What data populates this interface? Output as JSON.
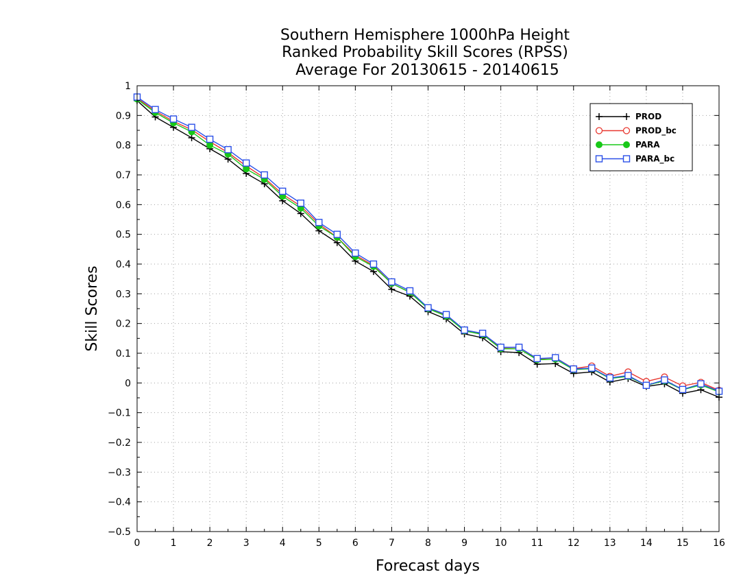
{
  "chart_data": {
    "type": "line",
    "title_lines": [
      "Southern Hemisphere 1000hPa Height",
      "Ranked Probability Skill Scores (RPSS)",
      " Average For 20130615 - 20140615"
    ],
    "xlabel": "Forecast days",
    "ylabel": "Skill Scores",
    "xlim": [
      0,
      16
    ],
    "ylim": [
      -0.5,
      1
    ],
    "xticks": [
      0,
      1,
      2,
      3,
      4,
      5,
      6,
      7,
      8,
      9,
      10,
      11,
      12,
      13,
      14,
      15,
      16
    ],
    "xtick_labels": [
      "0",
      "1",
      "2",
      "3",
      "4",
      "5",
      "6",
      "7",
      "8",
      "9",
      "10",
      "11",
      "12",
      "13",
      "14",
      "15",
      "16"
    ],
    "yticks": [
      -0.5,
      -0.4,
      -0.3,
      -0.2,
      -0.1,
      0,
      0.1,
      0.2,
      0.3,
      0.4,
      0.5,
      0.6,
      0.7,
      0.8,
      0.9,
      1
    ],
    "ytick_labels": [
      "−0.5",
      "−0.4",
      "−0.3",
      "−0.2",
      "−0.1",
      "0",
      "0.1",
      "0.2",
      "0.3",
      "0.4",
      "0.5",
      "0.6",
      "0.7",
      "0.8",
      "0.9",
      "1"
    ],
    "grid": true,
    "legend_position": "top-right",
    "x": [
      0,
      0.5,
      1,
      1.5,
      2,
      2.5,
      3,
      3.5,
      4,
      4.5,
      5,
      5.5,
      6,
      6.5,
      7,
      7.5,
      8,
      8.5,
      9,
      9.5,
      10,
      10.5,
      11,
      11.5,
      12,
      12.5,
      13,
      13.5,
      14,
      14.5,
      15,
      15.5,
      16
    ],
    "series": [
      {
        "name": "PROD",
        "color": "#000000",
        "marker": "plus",
        "values": [
          0.95,
          0.895,
          0.86,
          0.825,
          0.788,
          0.753,
          0.705,
          0.67,
          0.613,
          0.57,
          0.512,
          0.472,
          0.41,
          0.375,
          0.315,
          0.292,
          0.24,
          0.215,
          0.165,
          0.152,
          0.105,
          0.102,
          0.063,
          0.065,
          0.032,
          0.037,
          0.003,
          0.015,
          -0.012,
          -0.003,
          -0.035,
          -0.023,
          -0.048
        ]
      },
      {
        "name": "PROD_bc",
        "color": "#e8362e",
        "marker": "circle-open",
        "values": [
          0.958,
          0.915,
          0.88,
          0.852,
          0.812,
          0.775,
          0.73,
          0.69,
          0.635,
          0.595,
          0.535,
          0.49,
          0.43,
          0.395,
          0.335,
          0.305,
          0.252,
          0.228,
          0.175,
          0.165,
          0.118,
          0.12,
          0.08,
          0.085,
          0.048,
          0.057,
          0.022,
          0.037,
          0.005,
          0.02,
          -0.01,
          0.002,
          -0.025
        ]
      },
      {
        "name": "PARA",
        "color": "#18c818",
        "marker": "circle-filled",
        "values": [
          0.955,
          0.91,
          0.875,
          0.845,
          0.8,
          0.77,
          0.72,
          0.685,
          0.628,
          0.588,
          0.528,
          0.49,
          0.425,
          0.392,
          0.335,
          0.305,
          0.25,
          0.225,
          0.175,
          0.163,
          0.115,
          0.115,
          0.078,
          0.08,
          0.045,
          0.048,
          0.015,
          0.022,
          -0.008,
          0.007,
          -0.023,
          -0.007,
          -0.03
        ]
      },
      {
        "name": "PARA_bc",
        "color": "#2a4fe8",
        "marker": "square-open",
        "values": [
          0.962,
          0.92,
          0.888,
          0.86,
          0.82,
          0.785,
          0.74,
          0.7,
          0.645,
          0.605,
          0.54,
          0.5,
          0.437,
          0.4,
          0.34,
          0.31,
          0.253,
          0.23,
          0.178,
          0.167,
          0.12,
          0.12,
          0.082,
          0.085,
          0.047,
          0.05,
          0.017,
          0.025,
          -0.008,
          0.01,
          -0.022,
          -0.003,
          -0.028
        ]
      }
    ]
  }
}
